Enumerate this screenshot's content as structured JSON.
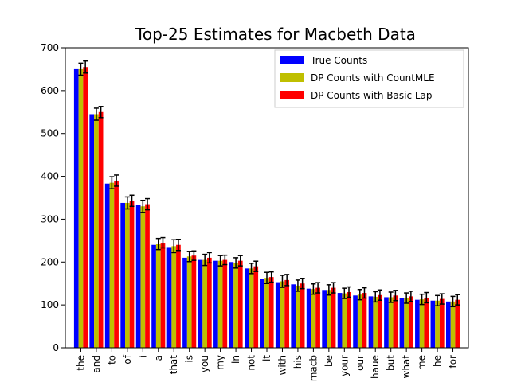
{
  "chart_data": {
    "type": "bar",
    "title": "Top-25 Estimates for Macbeth Data",
    "xlabel": "",
    "ylabel": "",
    "ylim": [
      0,
      700
    ],
    "yticks": [
      0,
      100,
      200,
      300,
      400,
      500,
      600,
      700
    ],
    "categories": [
      "the",
      "and",
      "to",
      "of",
      "i",
      "a",
      "that",
      "is",
      "you",
      "my",
      "in",
      "not",
      "it",
      "with",
      "his",
      "macb",
      "be",
      "your",
      "our",
      "haue",
      "but",
      "what",
      "me",
      "he",
      "for"
    ],
    "series": [
      {
        "name": "True Counts",
        "color": "#0000ff",
        "values": [
          650,
          545,
          383,
          338,
          333,
          240,
          235,
          210,
          205,
          203,
          200,
          185,
          160,
          153,
          148,
          138,
          135,
          128,
          122,
          120,
          118,
          116,
          112,
          110,
          108
        ],
        "errors": [
          0,
          0,
          0,
          0,
          0,
          0,
          0,
          0,
          0,
          0,
          0,
          0,
          0,
          0,
          0,
          0,
          0,
          0,
          0,
          0,
          0,
          0,
          0,
          0,
          0
        ]
      },
      {
        "name": "DP Counts with CountMLE",
        "color": "#bfbf00",
        "values": [
          650,
          545,
          385,
          338,
          330,
          242,
          237,
          213,
          205,
          203,
          198,
          185,
          163,
          155,
          145,
          137,
          135,
          127,
          124,
          119,
          118,
          116,
          113,
          110,
          108
        ],
        "errors": [
          14,
          14,
          14,
          14,
          14,
          13,
          15,
          12,
          13,
          12,
          12,
          12,
          13,
          14,
          13,
          12,
          12,
          12,
          12,
          12,
          12,
          12,
          12,
          12,
          12
        ]
      },
      {
        "name": "DP Counts with Basic Lap",
        "color": "#ff0000",
        "values": [
          655,
          550,
          390,
          343,
          335,
          245,
          240,
          215,
          210,
          205,
          203,
          190,
          165,
          158,
          150,
          140,
          140,
          130,
          128,
          123,
          122,
          120,
          117,
          114,
          112
        ],
        "errors": [
          14,
          13,
          13,
          13,
          13,
          12,
          13,
          11,
          12,
          11,
          12,
          12,
          12,
          13,
          12,
          12,
          12,
          12,
          12,
          12,
          12,
          12,
          12,
          12,
          12
        ]
      }
    ],
    "legend": {
      "position": "upper-right"
    }
  }
}
